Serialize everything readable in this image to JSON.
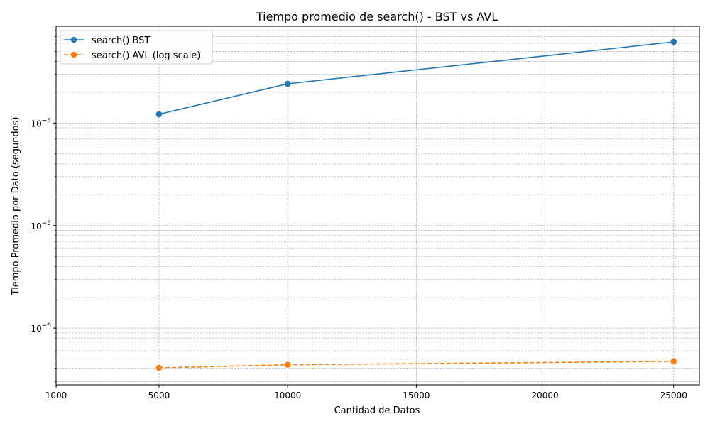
{
  "chart_data": {
    "type": "line",
    "title": "Tiempo promedio de search() - BST vs AVL",
    "xlabel": "Cantidad de Datos",
    "ylabel": "Tiempo Promedio por Dato (segundos)",
    "x_scale": "linear",
    "y_scale": "log",
    "xlim": [
      1000,
      26000
    ],
    "ylim": [
      2.8e-07,
      0.00088
    ],
    "x_ticks": [
      1000,
      5000,
      10000,
      15000,
      20000,
      25000
    ],
    "x_tick_labels": [
      "1000",
      "5000",
      "10000",
      "15000",
      "20000",
      "25000"
    ],
    "y_ticks": [
      1e-06,
      1e-05,
      0.0001
    ],
    "y_tick_labels": [
      {
        "base": "10",
        "exp": "−6"
      },
      {
        "base": "10",
        "exp": "−5"
      },
      {
        "base": "10",
        "exp": "−4"
      }
    ],
    "grid": true,
    "grid_style": "dashed",
    "legend_position": "top-left",
    "x": [
      5000,
      10000,
      25000
    ],
    "series": [
      {
        "name": "search() BST",
        "values": [
          0.000122,
          0.000242,
          0.00062
        ],
        "color": "#1f77b4",
        "line_style": "solid",
        "marker": "circle"
      },
      {
        "name": "search() AVL (log scale)",
        "values": [
          4.1e-07,
          4.4e-07,
          4.75e-07
        ],
        "color": "#ff7f0e",
        "line_style": "dashed",
        "marker": "circle"
      }
    ]
  }
}
